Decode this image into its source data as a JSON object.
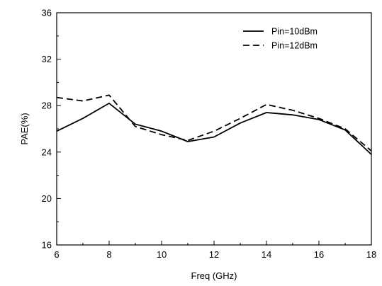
{
  "chart_data": {
    "type": "line",
    "xlabel": "Freq (GHz)",
    "ylabel": "PAE(%)",
    "xlim": [
      6,
      18
    ],
    "ylim": [
      16,
      36
    ],
    "x_ticks": [
      6,
      8,
      10,
      12,
      14,
      16,
      18
    ],
    "y_ticks": [
      16,
      20,
      24,
      28,
      32,
      36
    ],
    "grid": false,
    "legend_position": "top-right",
    "series": [
      {
        "name": "Pin=10dBm",
        "line_style": "solid",
        "color": "#000000",
        "x": [
          6,
          7,
          8,
          9,
          10,
          11,
          12,
          13,
          14,
          15,
          16,
          17,
          18
        ],
        "y": [
          25.8,
          26.9,
          28.2,
          26.4,
          25.8,
          24.9,
          25.3,
          26.5,
          27.4,
          27.2,
          26.8,
          25.9,
          23.8
        ]
      },
      {
        "name": "Pin=12dBm",
        "line_style": "dashed",
        "color": "#000000",
        "x": [
          6,
          7,
          8,
          9,
          10,
          11,
          12,
          13,
          14,
          15,
          16,
          17,
          18
        ],
        "y": [
          28.7,
          28.4,
          28.9,
          26.2,
          25.5,
          25.0,
          25.8,
          26.9,
          28.1,
          27.6,
          26.9,
          26.0,
          24.1
        ]
      }
    ]
  }
}
